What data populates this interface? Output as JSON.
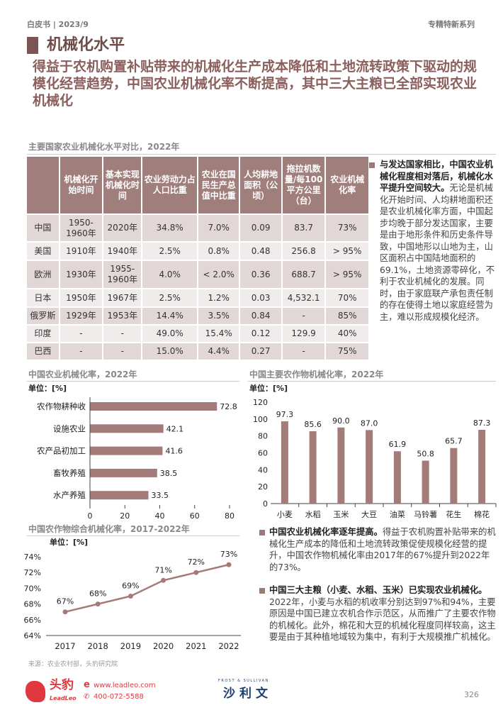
{
  "header": {
    "left": "白皮书 | 2023/9",
    "right": "专精特新系列"
  },
  "title": "机械化水平",
  "subtitle": "得益于农机购置补贴带来的机械化生产成本降低和土地流转政策下驱动的规模化经营趋势，中国农业机械化率不断提高，其中三大主粮已全部实现农业机械化",
  "table": {
    "title": "主要国家农业机械化水平对比，2022年",
    "headers": [
      "",
      "机械化开始时间",
      "基本实现机械化时间",
      "农业劳动力占人口比重",
      "农业在国民生产总值中比重",
      "人均耕地面积（公顷）",
      "拖拉机数量/每100平方公里（台）",
      "农业机械化率"
    ],
    "rows": [
      [
        "中国",
        "1950-1960年",
        "2020年",
        "34.8%",
        "7.0%",
        "0.09",
        "83.7",
        "73%"
      ],
      [
        "美国",
        "1910年",
        "1940年",
        "2.5%",
        "0.8%",
        "0.48",
        "256.8",
        "> 95%"
      ],
      [
        "欧洲",
        "1930年",
        "1955-1960年",
        "4.0%",
        "< 2.0%",
        "0.36",
        "688.7",
        "> 95%"
      ],
      [
        "日本",
        "1950年",
        "1967年",
        "2.5%",
        "1.2%",
        "0.03",
        "4,532.1",
        "70%"
      ],
      [
        "俄罗斯",
        "1929年",
        "1953年",
        "14.4%",
        "3.5%",
        "0.84",
        "-",
        "85%"
      ],
      [
        "印度",
        "-",
        "-",
        "49.0%",
        "15.4%",
        "0.12",
        "129.9",
        "40%"
      ],
      [
        "巴西",
        "-",
        "-",
        "15.0%",
        "4.4%",
        "0.27",
        "-",
        "75%"
      ]
    ]
  },
  "side_note": {
    "bold": "与发达国家相比，中国农业机械化程度相对落后，机械化水平提升空间较大。",
    "text": "无论是机械化开始时间、人均耕地面积还是农业机械化率方面，中国起步均晚于部分发达国家，主要是由于地形条件和历史条件导致，中国地形以山地为主，山区面积占中国陆地面积的69.1%，土地资源零碎化，不利于农业机械化的发展。同时，由于家庭联产承包责任制的存在使得土地以家庭经营为主，难以形成规模化经济。"
  },
  "chart_data": [
    {
      "type": "bar",
      "orientation": "horizontal",
      "title": "中国农业机械化率，2022年",
      "unit": "单位：[%]",
      "categories": [
        "农作物耕种收",
        "设施农业",
        "农产品初加工",
        "畜牧养殖",
        "水产养殖"
      ],
      "values": [
        72.8,
        42.1,
        41.6,
        38.5,
        33.5
      ],
      "xlim": [
        0,
        80
      ],
      "ticks": [
        "0",
        "20",
        "40",
        "60",
        "80"
      ]
    },
    {
      "type": "bar",
      "title": "中国主要农作物机械化率，2022年",
      "unit": "单位：[%]",
      "categories": [
        "小麦",
        "水稻",
        "玉米",
        "大豆",
        "油菜",
        "马铃薯",
        "花生",
        "棉花"
      ],
      "values": [
        97.3,
        85.6,
        90.0,
        87.0,
        61.9,
        50.8,
        65.7,
        87.3
      ],
      "ylim": [
        0,
        120
      ],
      "ticks": [
        "0",
        "20",
        "40",
        "60",
        "80",
        "100",
        "120"
      ]
    },
    {
      "type": "line",
      "title": "中国农作物综合机械化率，2017-2022年",
      "unit": "单位：[%]",
      "x": [
        "2017",
        "2018",
        "2019",
        "2020",
        "2021",
        "2022"
      ],
      "values": [
        67,
        68,
        69,
        71,
        72,
        73
      ],
      "ylim": [
        64,
        74
      ],
      "ticks": [
        "64%",
        "66%",
        "68%",
        "70%",
        "72%",
        "74%"
      ]
    }
  ],
  "notes": [
    {
      "bold": "中国农业机械化率逐年提高。",
      "text": "得益于农机购置补贴带来的机械化生产成本的降低和土地流转政策促使规模化经营的提升，中国农作物机械化率由2017年的67%提升到2022年的73%。"
    },
    {
      "bold": "中国三大主粮（小麦、水稻、玉米）已实现农业机械化。",
      "text": "2022年，小麦与水稻的机收率分别达到97%和94%，主要原因是中国已建立农机合作示范区，从而推广了主要农作物的机械化。此外，棉花和大豆的机械化程度同样较高，这主要是由于其种植地域较为集中，有利于大规模推广机械化。"
    }
  ],
  "source": "来源：农业农村部，头豹研究院",
  "footer": {
    "logo_cn": "头豹",
    "logo_en": "LeadLeo",
    "website": "www.leadleo.com",
    "phone": "400-072-5588",
    "partner_en": "FROST & SULLIVAN",
    "partner_cn": "沙利文",
    "page": "326"
  },
  "colors": {
    "accent": "#a07e7c",
    "title": "#6e4c4a",
    "brand_red": "#e0383e",
    "partner_blue": "#1d3e6e"
  }
}
